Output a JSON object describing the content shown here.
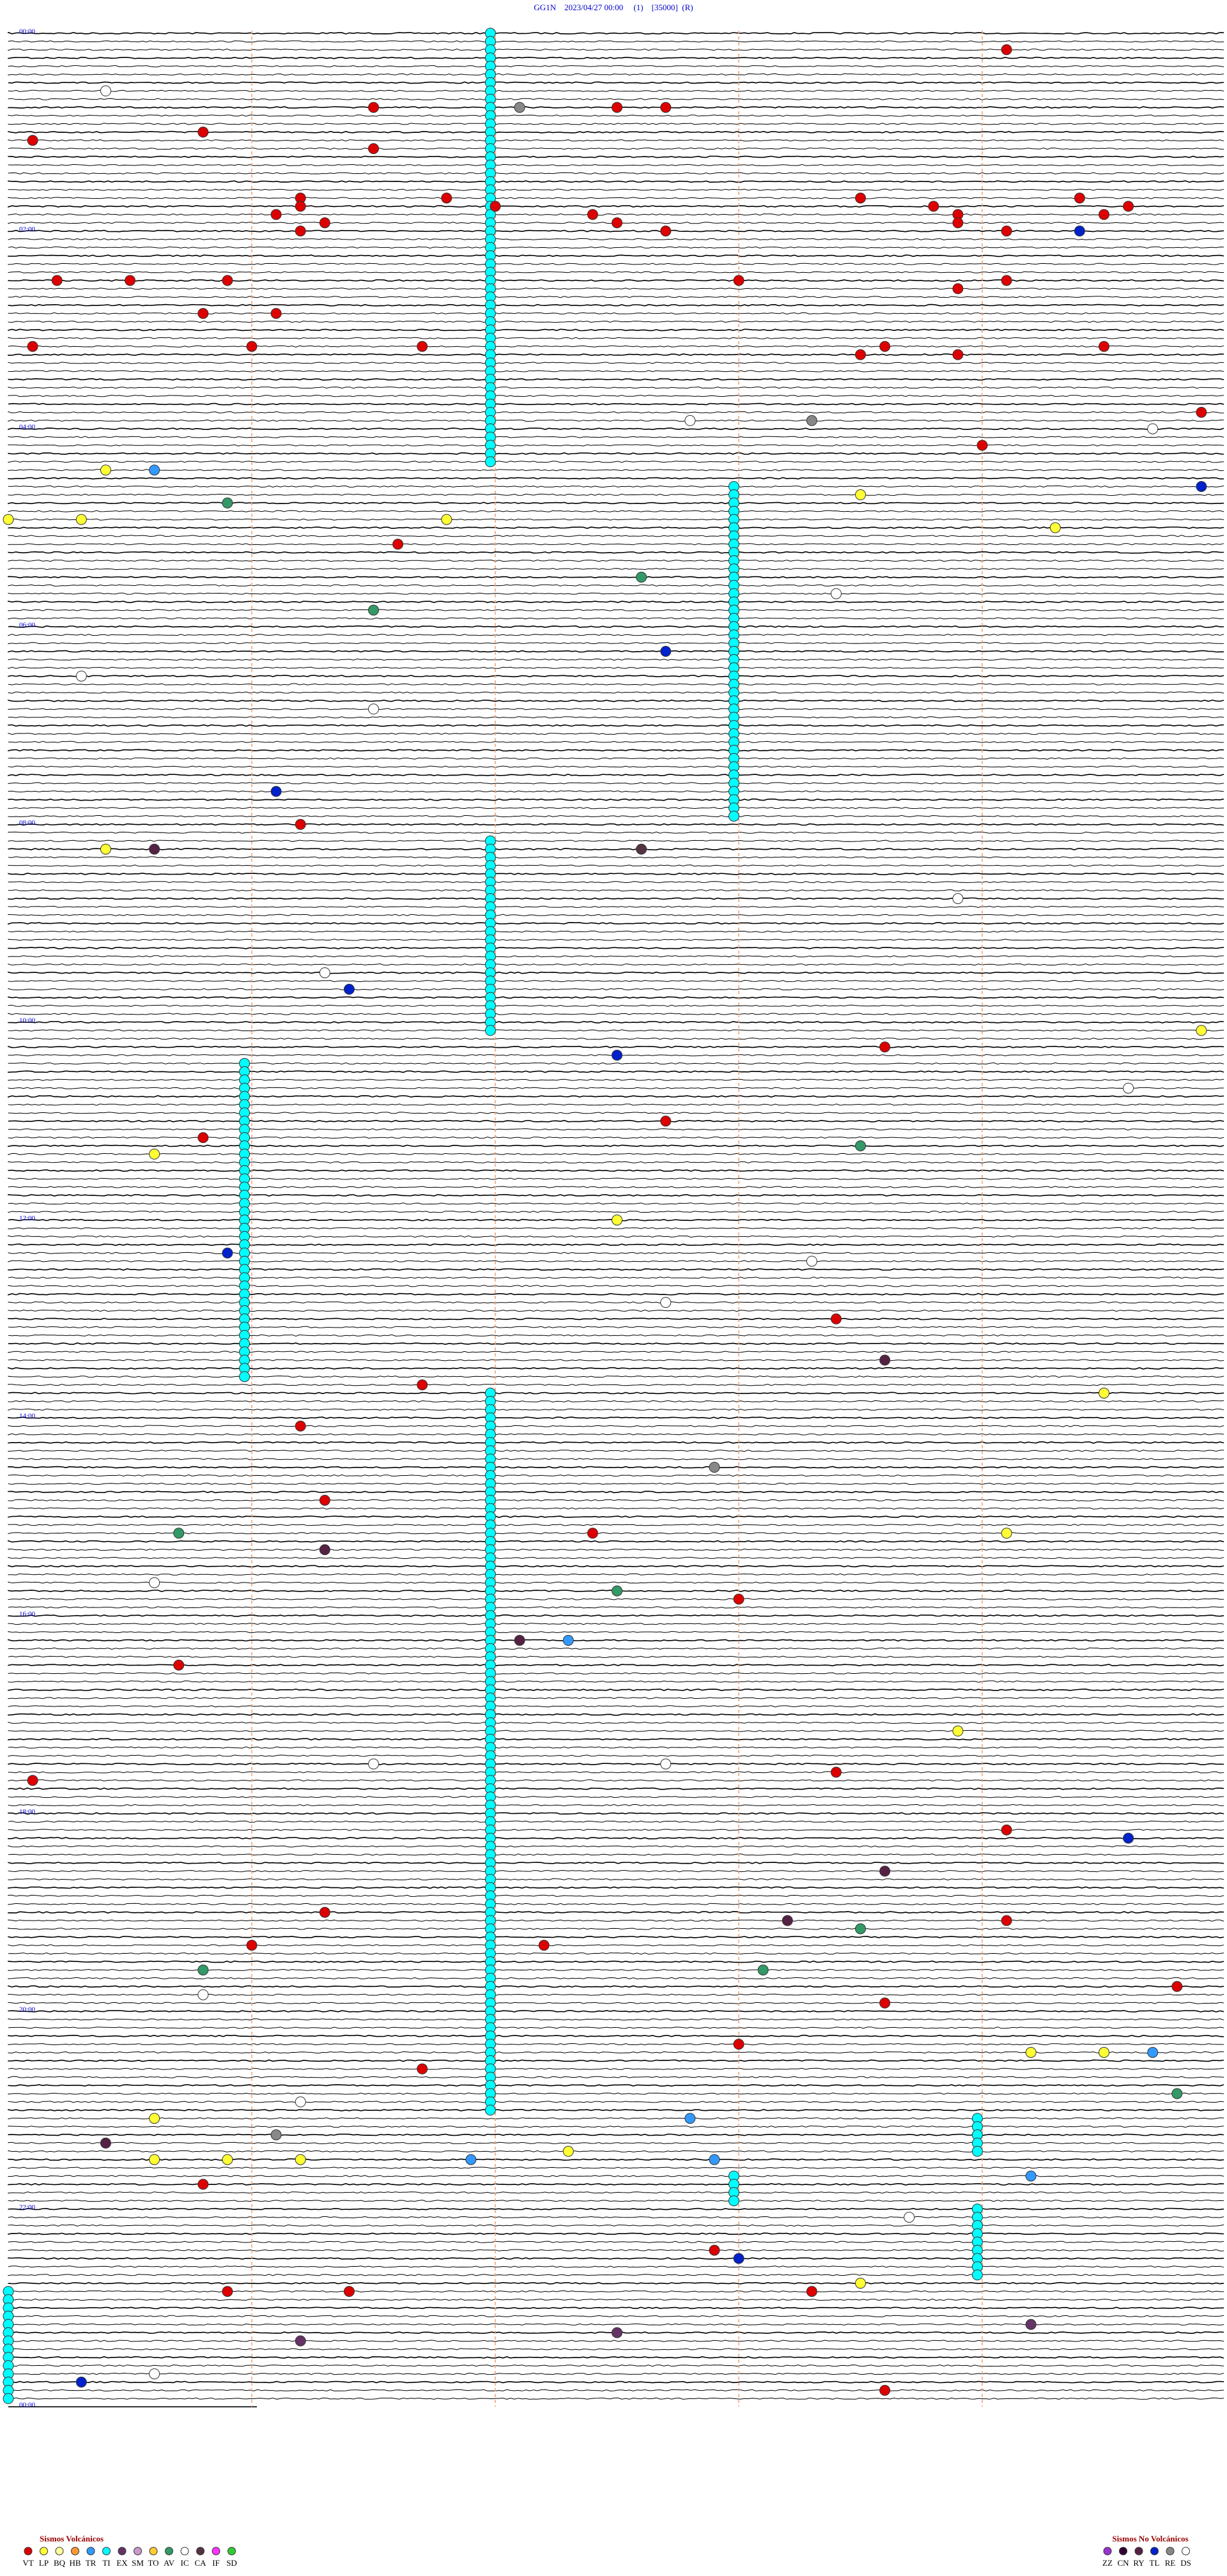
{
  "chart_data": {
    "type": "helicorder",
    "title": "GG1N    2023/04/27 00:00     (1)    [35000]  (R)",
    "time_labels": [
      "00:00",
      "02:00",
      "04:00",
      "06:00",
      "08:00",
      "10:00",
      "12:00",
      "14:00",
      "16:00",
      "18:00",
      "20:00",
      "22:00",
      "00:00"
    ],
    "legend_volcanic": {
      "title": "Sismos Volcánicos",
      "items": [
        {
          "code": "VT",
          "color": "#dd0000"
        },
        {
          "code": "LP",
          "color": "#ffff33"
        },
        {
          "code": "BQ",
          "color": "#ffff99"
        },
        {
          "code": "HB",
          "color": "#ff9933"
        },
        {
          "code": "TR",
          "color": "#3399ff"
        },
        {
          "code": "TI",
          "color": "#00ffff"
        },
        {
          "code": "EX",
          "color": "#663366"
        },
        {
          "code": "SM",
          "color": "#cc99cc"
        },
        {
          "code": "TO",
          "color": "#ffcc33"
        },
        {
          "code": "AV",
          "color": "#339966"
        },
        {
          "code": "IC",
          "color": "#ffffff"
        },
        {
          "code": "CA",
          "color": "#553344"
        },
        {
          "code": "IF",
          "color": "#ff33ff"
        },
        {
          "code": "SD",
          "color": "#33cc33"
        }
      ]
    },
    "legend_non_volcanic": {
      "title": "Sismos No Volcánicos",
      "items": [
        {
          "code": "ZZ",
          "color": "#9933cc"
        },
        {
          "code": "CN",
          "color": "#330033"
        },
        {
          "code": "RY",
          "color": "#552244"
        },
        {
          "code": "TL",
          "color": "#0022cc"
        },
        {
          "code": "RE",
          "color": "#888888"
        },
        {
          "code": "DS",
          "color": "#ffffff"
        }
      ]
    },
    "episodes": [
      {
        "type": "TI",
        "time": 1.98,
        "count": 53
      },
      {
        "type": "TI",
        "time": 277.98,
        "count": 41
      },
      {
        "type": "TI",
        "time": 491.98,
        "count": 24
      },
      {
        "type": "TI",
        "time": 625.97,
        "count": 39
      },
      {
        "type": "TI",
        "time": 826.98,
        "count": 88
      },
      {
        "type": "TI",
        "time": 1268.98,
        "count": 5
      },
      {
        "type": "TI",
        "time": 1323.98,
        "count": 9
      },
      {
        "type": "TI",
        "time": 1302.98,
        "count": 4
      },
      {
        "type": "TI",
        "time": 1370.0,
        "count": 14
      }
    ],
    "events": [
      {
        "type": "VT",
        "time": 14.1
      },
      {
        "type": "VT",
        "time": 46.5
      },
      {
        "type": "RE",
        "time": 47.1
      },
      {
        "type": "VT",
        "time": 47.5
      },
      {
        "type": "VT",
        "time": 47.7
      },
      {
        "type": "VT",
        "time": 60.8
      },
      {
        "type": "VT",
        "time": 65.1
      },
      {
        "type": "VT",
        "time": 71.5
      },
      {
        "type": "VT",
        "time": 101.2
      },
      {
        "type": "VT",
        "time": 101.8
      },
      {
        "type": "VT",
        "time": 103.5
      },
      {
        "type": "VT",
        "time": 104.4
      },
      {
        "type": "VT",
        "time": 106.2
      },
      {
        "type": "VT",
        "time": 107.0
      },
      {
        "type": "VT",
        "time": 108.8
      },
      {
        "type": "VT",
        "time": 109.6
      },
      {
        "type": "VT",
        "time": 111.1
      },
      {
        "type": "VT",
        "time": 112.4
      },
      {
        "type": "VT",
        "time": 113.9
      },
      {
        "type": "VT",
        "time": 114.5
      },
      {
        "type": "VT",
        "time": 116.3
      },
      {
        "type": "VT",
        "time": 117.5
      },
      {
        "type": "VT",
        "time": 118.9
      },
      {
        "type": "VT",
        "time": 121.2
      },
      {
        "type": "VT",
        "time": 122.7
      },
      {
        "type": "VT",
        "time": 124.1
      },
      {
        "type": "TL",
        "time": 124.4
      },
      {
        "type": "VT",
        "time": 150.2
      },
      {
        "type": "VT",
        "time": 150.5
      },
      {
        "type": "VT",
        "time": 150.9
      },
      {
        "type": "VT",
        "time": 153.0
      },
      {
        "type": "VT",
        "time": 154.1
      },
      {
        "type": "VT",
        "time": 158.9
      },
      {
        "type": "VT",
        "time": 170.8
      },
      {
        "type": "VT",
        "time": 171.1
      },
      {
        "type": "VT",
        "time": 190.1
      },
      {
        "type": "VT",
        "time": 191.0
      },
      {
        "type": "VT",
        "time": 191.7
      },
      {
        "type": "VT",
        "time": 193.6
      },
      {
        "type": "VT",
        "time": 194.5
      },
      {
        "type": "VT",
        "time": 198.5
      },
      {
        "type": "VT",
        "time": 198.9
      },
      {
        "type": "VT",
        "time": 234.9
      },
      {
        "type": "VT",
        "time": 254.0
      },
      {
        "type": "LP",
        "time": 265.4
      },
      {
        "type": "TR",
        "time": 265.6
      },
      {
        "type": "LP",
        "time": 283.5
      },
      {
        "type": "TL",
        "time": 279.9
      },
      {
        "type": "AV",
        "time": 285.9
      },
      {
        "type": "LP",
        "time": 295.0
      },
      {
        "type": "LP",
        "time": 295.3
      },
      {
        "type": "LP",
        "time": 296.8
      },
      {
        "type": "LP",
        "time": 304.3
      },
      {
        "type": "VT",
        "time": 311.6
      },
      {
        "type": "AV",
        "time": 332.6
      },
      {
        "type": "AV",
        "time": 351.5
      },
      {
        "type": "TL",
        "time": 377.7
      },
      {
        "type": "IC",
        "time": 35.4
      },
      {
        "type": "IC",
        "time": 237.8
      },
      {
        "type": "RE",
        "time": 238.3
      },
      {
        "type": "IC",
        "time": 244.7
      },
      {
        "type": "IC",
        "time": 343.4
      },
      {
        "type": "IC",
        "time": 390.3
      },
      {
        "type": "IC",
        "time": 411.5
      },
      {
        "type": "TL",
        "time": 461.1
      },
      {
        "type": "VT",
        "time": 481.2
      },
      {
        "type": "RY",
        "time": 495.6
      },
      {
        "type": "CA",
        "time": 497.6
      },
      {
        "type": "LP",
        "time": 495.4
      },
      {
        "type": "IC",
        "time": 528.9
      },
      {
        "type": "IC",
        "time": 571.3
      },
      {
        "type": "TL",
        "time": 581.4
      },
      {
        "type": "LP",
        "time": 609.9
      },
      {
        "type": "VT",
        "time": 618.6
      },
      {
        "type": "TL",
        "time": 622.5
      },
      {
        "type": "IC",
        "time": 644.6
      },
      {
        "type": "VT",
        "time": 662.7
      },
      {
        "type": "VT",
        "time": 670.8
      },
      {
        "type": "AV",
        "time": 678.5
      },
      {
        "type": "LP",
        "time": 680.6
      },
      {
        "type": "LP",
        "time": 722.5
      },
      {
        "type": "TL",
        "time": 740.9
      },
      {
        "type": "IC",
        "time": 748.3
      },
      {
        "type": "IC",
        "time": 772.7
      },
      {
        "type": "VT",
        "time": 783.4
      },
      {
        "type": "RY",
        "time": 808.6
      },
      {
        "type": "VT",
        "time": 821.7
      },
      {
        "type": "LP",
        "time": 829.5
      },
      {
        "type": "VT",
        "time": 846.2
      },
      {
        "type": "RE",
        "time": 872.9
      },
      {
        "type": "VT",
        "time": 891.3
      },
      {
        "type": "AV",
        "time": 910.7
      },
      {
        "type": "VT",
        "time": 912.4
      },
      {
        "type": "LP",
        "time": 914.1
      },
      {
        "type": "RY",
        "time": 921.3
      },
      {
        "type": "IC",
        "time": 940.6
      },
      {
        "type": "AV",
        "time": 947.5
      },
      {
        "type": "VT",
        "time": 953.0
      },
      {
        "type": "RY",
        "time": 977.1
      },
      {
        "type": "TR",
        "time": 977.3
      },
      {
        "type": "VT",
        "time": 990.7
      },
      {
        "type": "LP",
        "time": 1033.9
      },
      {
        "type": "IC",
        "time": 1051.5
      },
      {
        "type": "IC",
        "time": 1052.7
      },
      {
        "type": "VT",
        "time": 1058.4
      },
      {
        "type": "VT",
        "time": 1060.1
      },
      {
        "type": "VT",
        "time": 1094.1
      },
      {
        "type": "TL",
        "time": 1099.6
      },
      {
        "type": "RY",
        "time": 1118.6
      },
      {
        "type": "VT",
        "time": 1141.3
      },
      {
        "type": "RY",
        "time": 1148.2
      },
      {
        "type": "VT",
        "time": 1149.1
      },
      {
        "type": "AV",
        "time": 1153.5
      },
      {
        "type": "VT",
        "time": 1161.0
      },
      {
        "type": "VT",
        "time": 1162.2
      },
      {
        "type": "AV",
        "time": 1175.8
      },
      {
        "type": "AV",
        "time": 1178.1
      },
      {
        "type": "VT",
        "time": 1189.8
      },
      {
        "type": "IC",
        "time": 1190.8
      },
      {
        "type": "VT",
        "time": 1198.6
      },
      {
        "type": "VT",
        "time": 1223.0
      },
      {
        "type": "LP",
        "time": 1229.2
      },
      {
        "type": "LP",
        "time": 1229.5
      },
      {
        "type": "TR",
        "time": 1229.7
      },
      {
        "type": "VT",
        "time": 1236.7
      },
      {
        "type": "AV",
        "time": 1254.8
      },
      {
        "type": "IC",
        "time": 1256.2
      },
      {
        "type": "LP",
        "time": 1265.6
      },
      {
        "type": "TR",
        "time": 1267.8
      },
      {
        "type": "RE",
        "time": 1276.1
      },
      {
        "type": "RY",
        "time": 1280.4
      },
      {
        "type": "LP",
        "time": 1287.3
      },
      {
        "type": "LP",
        "time": 1290.6
      },
      {
        "type": "LP",
        "time": 1290.9
      },
      {
        "type": "LP",
        "time": 1291.2
      },
      {
        "type": "TR",
        "time": 1291.9
      },
      {
        "type": "TR",
        "time": 1292.9
      },
      {
        "type": "TR",
        "time": 1304.2
      },
      {
        "type": "VT",
        "time": 1305.8
      },
      {
        "type": "IC",
        "time": 1328.7
      },
      {
        "type": "VT",
        "time": 1347.9
      },
      {
        "type": "TL",
        "time": 1353.0
      },
      {
        "type": "LP",
        "time": 1368.5
      },
      {
        "type": "VT",
        "time": 1370.9
      },
      {
        "type": "VT",
        "time": 1371.4
      },
      {
        "type": "VT",
        "time": 1373.3
      },
      {
        "type": "EX",
        "time": 1394.2
      },
      {
        "type": "EX",
        "time": 1397.5
      },
      {
        "type": "EX",
        "time": 1401.2
      },
      {
        "type": "IC",
        "time": 1420.6
      },
      {
        "type": "TL",
        "time": 1425.3
      },
      {
        "type": "VT",
        "time": 1433.6
      }
    ]
  }
}
